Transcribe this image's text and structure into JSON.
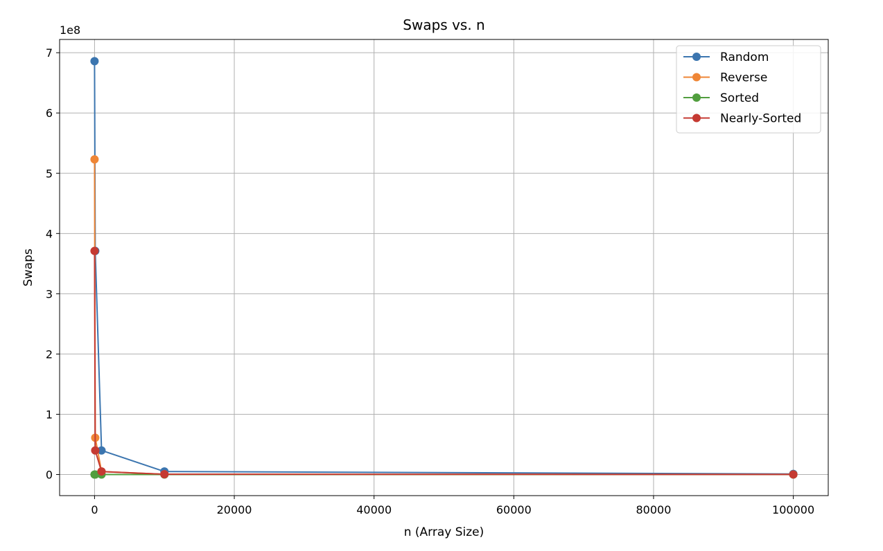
{
  "chart_data": {
    "type": "line",
    "title": "Swaps vs. n",
    "xlabel": "n (Array Size)",
    "ylabel": "Swaps",
    "y_offset_label": "1e8",
    "y_scale_factor": 100000000,
    "xlim": [
      -5000,
      105000
    ],
    "ylim": [
      -35000000,
      722000000
    ],
    "x_ticks": [
      0,
      20000,
      40000,
      60000,
      80000,
      100000
    ],
    "x_tick_labels": [
      "0",
      "20000",
      "40000",
      "60000",
      "80000",
      "100000"
    ],
    "y_ticks": [
      0,
      100000000,
      200000000,
      300000000,
      400000000,
      500000000,
      600000000,
      700000000
    ],
    "y_tick_labels": [
      "0",
      "1",
      "2",
      "3",
      "4",
      "5",
      "6",
      "7"
    ],
    "grid": true,
    "legend_position": "top-right",
    "series": [
      {
        "name": "Random",
        "color": "#3b75af",
        "x": [
          0,
          100,
          1000,
          10000,
          100000
        ],
        "y": [
          686000000,
          371000000,
          40000000,
          5000000,
          1000000
        ]
      },
      {
        "name": "Reverse",
        "color": "#ef8636",
        "x": [
          0,
          100,
          1000,
          10000,
          100000
        ],
        "y": [
          523000000,
          61000000,
          5000000,
          500000,
          100000
        ]
      },
      {
        "name": "Sorted",
        "color": "#519e3e",
        "x": [
          0,
          100,
          1000,
          10000,
          100000
        ],
        "y": [
          0,
          0,
          0,
          0,
          0
        ]
      },
      {
        "name": "Nearly-Sorted",
        "color": "#c53a32",
        "x": [
          0,
          100,
          1000,
          10000,
          100000
        ],
        "y": [
          371000000,
          40000000,
          5000000,
          500000,
          100000
        ]
      }
    ]
  }
}
